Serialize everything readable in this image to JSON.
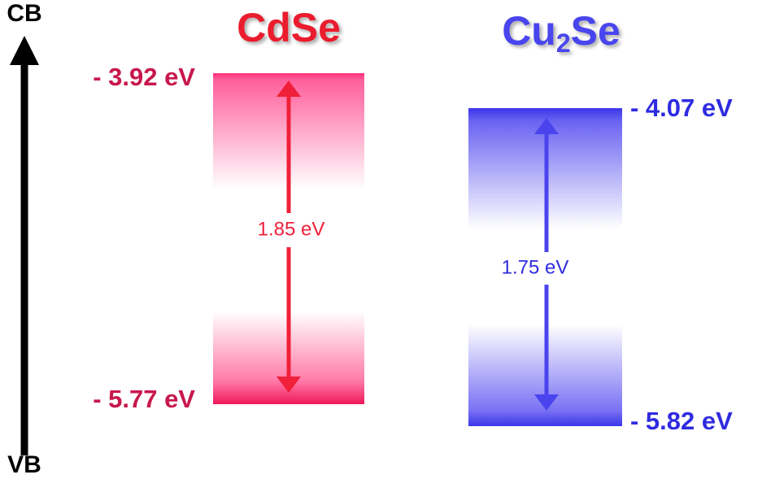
{
  "axis": {
    "top": "CB",
    "bottom": "VB"
  },
  "materials": [
    {
      "name": "CdSe",
      "top_level": "- 3.92 eV",
      "bottom_level": "- 5.77 eV",
      "gap": "1.85 eV"
    },
    {
      "name": [
        "Cu",
        "2",
        "Se"
      ],
      "top_level": "- 4.07 eV",
      "bottom_level": "- 5.82 eV",
      "gap": "1.75 eV"
    }
  ]
}
